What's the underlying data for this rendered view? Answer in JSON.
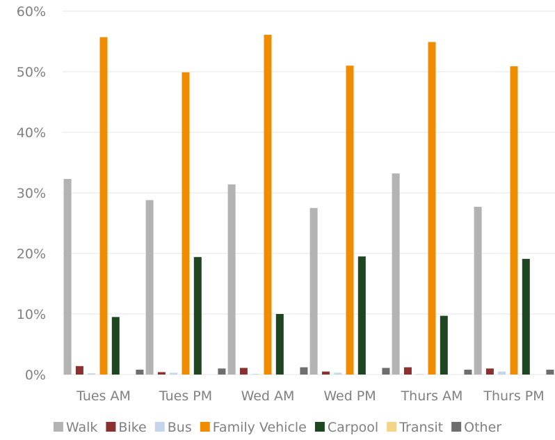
{
  "chart_data": {
    "type": "bar",
    "categories": [
      "Tues AM",
      "Tues PM",
      "Wed AM",
      "Wed PM",
      "Thurs AM",
      "Thurs PM"
    ],
    "ylim": [
      0,
      0.6
    ],
    "ytick_values": [
      0,
      0.1,
      0.2,
      0.3,
      0.4,
      0.5,
      0.6
    ],
    "ytick_labels": [
      "0%",
      "10%",
      "20%",
      "30%",
      "40%",
      "50%",
      "60%"
    ],
    "grid": true,
    "legend_position": "bottom",
    "series": [
      {
        "name": "Walk",
        "color": "#b3b3b3",
        "values": [
          0.323,
          0.288,
          0.314,
          0.275,
          0.332,
          0.277
        ]
      },
      {
        "name": "Bike",
        "color": "#8b2f2f",
        "values": [
          0.014,
          0.004,
          0.011,
          0.005,
          0.012,
          0.01
        ]
      },
      {
        "name": "Bus",
        "color": "#c5d6ea",
        "values": [
          0.002,
          0.003,
          0.001,
          0.003,
          0.001,
          0.005
        ]
      },
      {
        "name": "Family Vehicle",
        "color": "#f08c00",
        "values": [
          0.557,
          0.499,
          0.561,
          0.51,
          0.549,
          0.509
        ]
      },
      {
        "name": "Carpool",
        "color": "#1e4620",
        "values": [
          0.095,
          0.194,
          0.1,
          0.195,
          0.097,
          0.191
        ]
      },
      {
        "name": "Transit",
        "color": "#f5d387",
        "values": [
          0.0,
          0.0,
          0.0,
          0.0,
          0.0,
          0.0
        ]
      },
      {
        "name": "Other",
        "color": "#6e6e6e",
        "values": [
          0.008,
          0.01,
          0.012,
          0.011,
          0.008,
          0.008
        ]
      }
    ]
  }
}
